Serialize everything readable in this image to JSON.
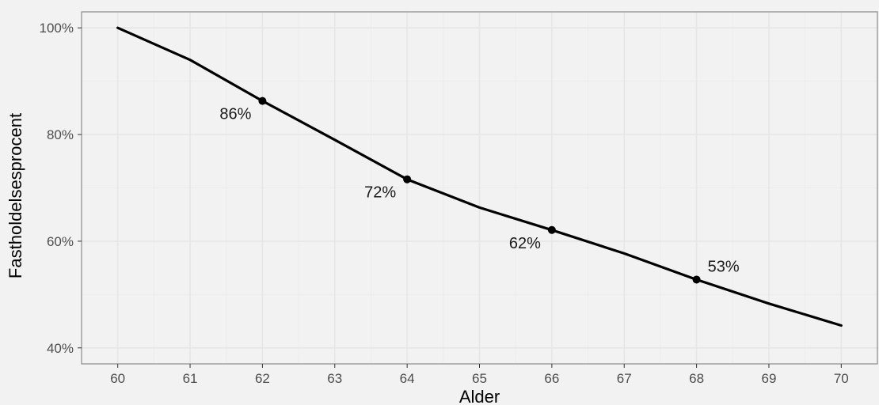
{
  "chart_data": {
    "type": "line",
    "xlabel": "Alder",
    "ylabel": "Fastholdelsesprocent",
    "xlim": [
      60,
      70
    ],
    "ylim": [
      40,
      100
    ],
    "x_ticks": [
      "60",
      "61",
      "62",
      "63",
      "64",
      "65",
      "66",
      "67",
      "68",
      "69",
      "70"
    ],
    "y_ticks": [
      {
        "value": 40,
        "label": "40%"
      },
      {
        "value": 60,
        "label": "60%"
      },
      {
        "value": 80,
        "label": "80%"
      },
      {
        "value": 100,
        "label": "100%"
      }
    ],
    "grid": true,
    "series": [
      {
        "x": [
          60,
          61,
          62,
          63,
          64,
          65,
          66,
          67,
          68,
          69,
          70
        ],
        "values": [
          100,
          94,
          86.3,
          79,
          71.6,
          66.3,
          62.1,
          57.7,
          52.8,
          48.3,
          44.2
        ]
      }
    ],
    "markers": [
      {
        "x": 62,
        "y": 86.3,
        "label": "86%",
        "label_position": "below-left"
      },
      {
        "x": 64,
        "y": 71.6,
        "label": "72%",
        "label_position": "below-left"
      },
      {
        "x": 66,
        "y": 62.1,
        "label": "62%",
        "label_position": "below-left"
      },
      {
        "x": 68,
        "y": 52.8,
        "label": "53%",
        "label_position": "above-right"
      }
    ],
    "colors": {
      "line": "#000000",
      "panel": "#f2f2f2",
      "grid_major": "#e6e6e6",
      "grid_minor": "#ececec",
      "border": "#8c8c8c"
    }
  }
}
